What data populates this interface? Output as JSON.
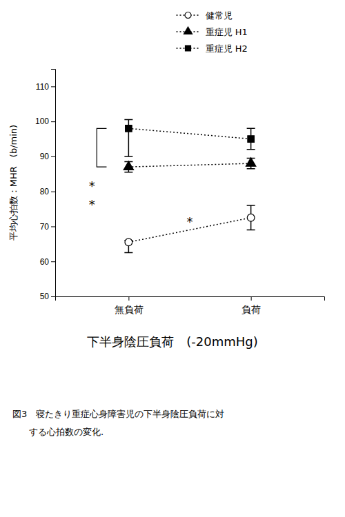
{
  "chart_data": {
    "type": "line",
    "title": "下半身陰圧負荷　(-20mmHg)",
    "caption": [
      "図3　寝たきり重症心身障害児の下半身陰圧負荷に対",
      "する心拍数の変化."
    ],
    "ylabel": "平均心拍数：MHR　(b/min)",
    "categories": [
      "無負荷",
      "負荷"
    ],
    "ylim": [
      50,
      115
    ],
    "yticks": [
      50,
      60,
      70,
      80,
      90,
      100,
      110
    ],
    "grid": false,
    "legend": "upper right",
    "annotations": [
      "*",
      "*",
      "*"
    ],
    "series": [
      {
        "name": "健常児",
        "color": "black",
        "marker": "circle-open",
        "line_style": "dotted",
        "values": [
          65.5,
          72.5
        ],
        "error_minus": [
          3.0,
          3.5
        ],
        "error_plus": [
          0.5,
          3.5
        ]
      },
      {
        "name": "重症児  H1",
        "color": "black",
        "marker": "triangle",
        "line_style": "dotted",
        "values": [
          87,
          88
        ],
        "error_minus": [
          1.5,
          1.5
        ],
        "error_plus": [
          1.5,
          1.5
        ]
      },
      {
        "name": "重症児  H2",
        "color": "black",
        "marker": "square",
        "line_style": "dotted",
        "values": [
          98,
          95
        ],
        "error_minus": [
          8,
          3
        ],
        "error_plus": [
          2.5,
          3
        ]
      }
    ]
  }
}
